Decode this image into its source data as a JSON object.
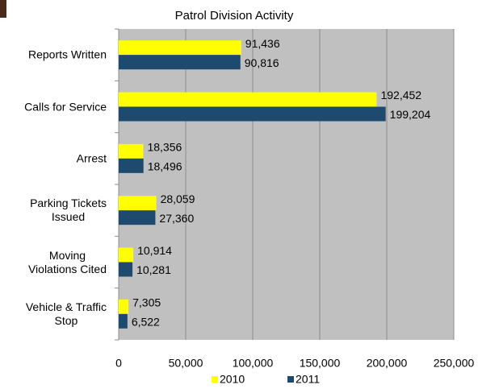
{
  "chart_data": {
    "type": "hbar",
    "title": "Patrol Division Activity",
    "categories": [
      "Reports Written",
      "Calls for Service",
      "Arrest",
      "Parking Tickets\nIssued",
      "Moving\nViolations Cited",
      "Vehicle & Traffic\nStop"
    ],
    "series": [
      {
        "name": "2010",
        "color": "#ffff00",
        "values": [
          91436,
          192452,
          18356,
          28059,
          10914,
          7305
        ],
        "value_labels": [
          "91,436",
          "192,452",
          "18,356",
          "28,059",
          "10,914",
          "7,305"
        ]
      },
      {
        "name": "2011",
        "color": "#1f4a70",
        "values": [
          90816,
          199204,
          18496,
          27360,
          10281,
          6522
        ],
        "value_labels": [
          "90,816",
          "199,204",
          "18,496",
          "27,360",
          "10,281",
          "6,522"
        ]
      }
    ],
    "xlim": [
      0,
      250000
    ],
    "xticks": [
      0,
      {
        "value": 50000,
        "label": "50,000"
      },
      {
        "value": 100000,
        "label": "100,000"
      },
      {
        "value": 150000,
        "label": "150,000"
      },
      {
        "value": 200000,
        "label": "200,000"
      },
      {
        "value": 250000,
        "label": "250,000"
      }
    ],
    "grid": true,
    "legend": "bottom"
  }
}
